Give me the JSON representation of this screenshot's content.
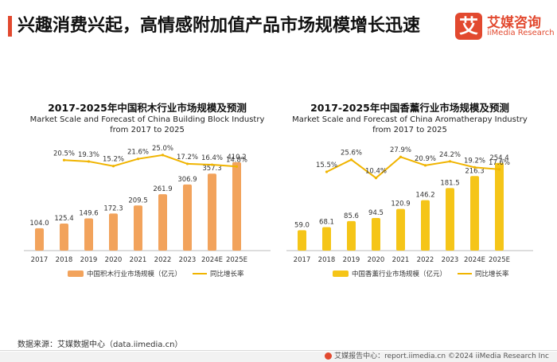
{
  "header": {
    "title": "兴趣消费兴起，高情感附加值产品市场规模增长迅速"
  },
  "logo": {
    "mark": "艾",
    "name_cn": "艾媒咨询",
    "name_en": "iiMedia Research"
  },
  "colors": {
    "accent": "#e2492f",
    "block_bar": "#f2a35c",
    "aroma_bar": "#f5c518",
    "line": "#f0b400"
  },
  "source": "数据来源：艾媒数据中心（data.iimedia.cn）",
  "footer": {
    "text": "艾媒报告中心：report.iimedia.cn    ©2024  iiMedia Research  Inc",
    "icon": "report-center-icon"
  },
  "chart_data": [
    {
      "type": "bar",
      "title": "2017-2025年中国积木行业市场规模及预测",
      "subtitle_line1": "Market Scale and Forecast of China Building Block Industry",
      "subtitle_line2": "from 2017 to 2025",
      "categories": [
        "2017",
        "2018",
        "2019",
        "2020",
        "2021",
        "2022",
        "2023",
        "2024E",
        "2025E"
      ],
      "series": [
        {
          "name": "中国积木行业市场规模（亿元）",
          "kind": "bar",
          "values": [
            104.0,
            125.4,
            149.6,
            172.3,
            209.5,
            261.9,
            306.9,
            357.3,
            410.2
          ],
          "labels": [
            "104.0",
            "125.4",
            "149.6",
            "172.3",
            "209.5",
            "261.9",
            "306.9",
            "357.3",
            "410.2"
          ]
        },
        {
          "name": "同比增长率",
          "kind": "line",
          "values": [
            null,
            20.5,
            19.3,
            15.2,
            21.6,
            25.0,
            17.2,
            16.4,
            14.8
          ],
          "labels": [
            "",
            "20.5%",
            "19.3%",
            "15.2%",
            "21.6%",
            "25.0%",
            "17.2%",
            "16.4%",
            "14.8%"
          ]
        }
      ],
      "ylim_bar": [
        0,
        480
      ],
      "ylim_line": [
        -60,
        32
      ],
      "legend_position": "bottom"
    },
    {
      "type": "bar",
      "title": "2017-2025年中国香薰行业市场规模及预测",
      "subtitle_line1": "Market Scale and Forecast of China Aromatherapy Industry",
      "subtitle_line2": "from 2017 to 2025",
      "categories": [
        "2017",
        "2018",
        "2019",
        "2020",
        "2021",
        "2022",
        "2023",
        "2024E",
        "2025E"
      ],
      "series": [
        {
          "name": "中国香薰行业市场规模（亿元）",
          "kind": "bar",
          "values": [
            59.0,
            68.1,
            85.6,
            94.5,
            120.9,
            146.2,
            181.5,
            216.3,
            254.4
          ],
          "labels": [
            "59.0",
            "68.1",
            "85.6",
            "94.5",
            "120.9",
            "146.2",
            "181.5",
            "216.3",
            "254.4"
          ]
        },
        {
          "name": "同比增长率",
          "kind": "line",
          "values": [
            null,
            15.5,
            25.6,
            10.4,
            27.9,
            20.9,
            24.2,
            19.2,
            17.6
          ],
          "labels": [
            "",
            "15.5%",
            "25.6%",
            "10.4%",
            "27.9%",
            "20.9%",
            "24.2%",
            "19.2%",
            "17.6%"
          ]
        }
      ],
      "ylim_bar": [
        0,
        300
      ],
      "ylim_line": [
        -50,
        36
      ],
      "legend_position": "bottom"
    }
  ]
}
